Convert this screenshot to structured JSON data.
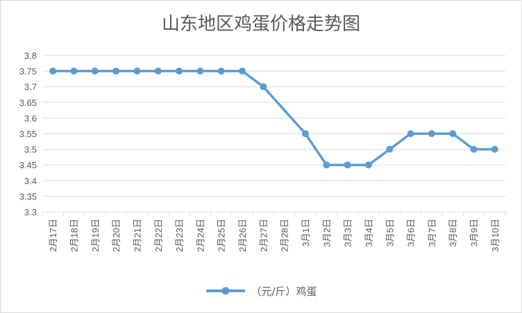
{
  "chart_data": {
    "type": "line",
    "title": "山东地区鸡蛋价格走势图",
    "categories": [
      "2月17日",
      "2月18日",
      "2月19日",
      "2月20日",
      "2月21日",
      "2月22日",
      "2月23日",
      "2月24日",
      "2月25日",
      "2月26日",
      "2月27日",
      "2月28日",
      "3月1日",
      "3月2日",
      "3月3日",
      "3月4日",
      "3月5日",
      "3月6日",
      "3月7日",
      "3月8日",
      "3月9日",
      "3月10日"
    ],
    "series": [
      {
        "name": "（元/斤）鸡蛋",
        "values": [
          3.75,
          3.75,
          3.75,
          3.75,
          3.75,
          3.75,
          3.75,
          3.75,
          3.75,
          3.75,
          3.7,
          3.625,
          3.55,
          3.45,
          3.45,
          3.45,
          3.5,
          3.55,
          3.55,
          3.55,
          3.5,
          3.5
        ],
        "color": "#5b9bd5",
        "markers": [
          true,
          true,
          true,
          true,
          true,
          true,
          true,
          true,
          true,
          true,
          true,
          false,
          true,
          true,
          true,
          true,
          true,
          true,
          true,
          true,
          true,
          true
        ]
      }
    ],
    "ylim": [
      3.3,
      3.8
    ],
    "yticks": [
      "3.3",
      "3.35",
      "3.4",
      "3.45",
      "3.5",
      "3.55",
      "3.6",
      "3.65",
      "3.7",
      "3.75",
      "3.8"
    ],
    "grid": true,
    "legend": "bottom"
  }
}
